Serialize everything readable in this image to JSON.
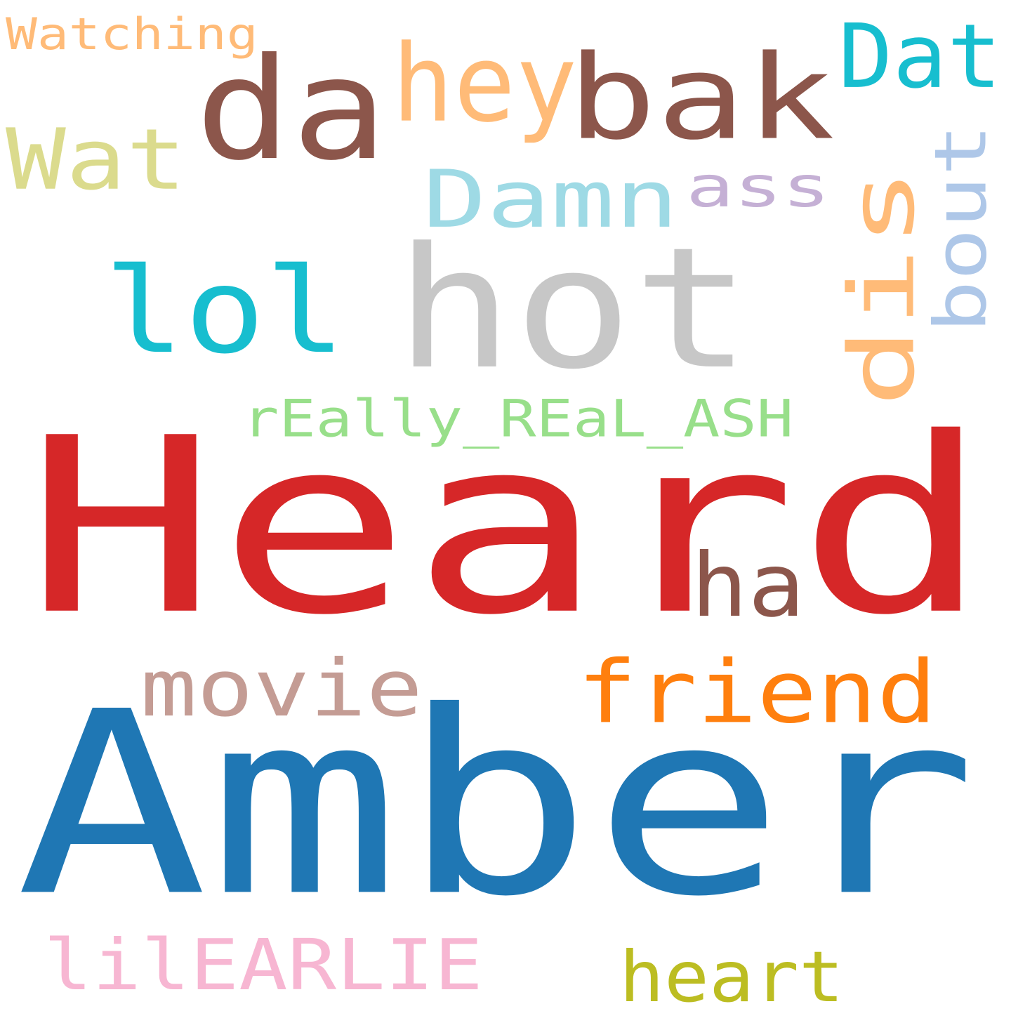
{
  "cloud": {
    "words": [
      {
        "text": "Heard",
        "color": "#d62728"
      },
      {
        "text": "Amber",
        "color": "#1f77b4"
      },
      {
        "text": "hot",
        "color": "#c7c7c7"
      },
      {
        "text": "da",
        "color": "#8c564b"
      },
      {
        "text": "bak",
        "color": "#8c564b"
      },
      {
        "text": "hey",
        "color": "#ffbb78"
      },
      {
        "text": "Dat",
        "color": "#17becf"
      },
      {
        "text": "Wat",
        "color": "#dbdb8d"
      },
      {
        "text": "Damn",
        "color": "#9edae5"
      },
      {
        "text": "ass",
        "color": "#c5b0d5"
      },
      {
        "text": "dis",
        "color": "#ffbb78"
      },
      {
        "text": "bout",
        "color": "#aec7e8"
      },
      {
        "text": "lol",
        "color": "#17becf"
      },
      {
        "text": "rEally_REaL_ASH",
        "color": "#98df8a"
      },
      {
        "text": "ha",
        "color": "#8c564b"
      },
      {
        "text": "movie",
        "color": "#c49c94"
      },
      {
        "text": "friend",
        "color": "#ff7f0e"
      },
      {
        "text": "lilEARLIE",
        "color": "#f7b6d2"
      },
      {
        "text": "heart",
        "color": "#bcbd22"
      },
      {
        "text": "Watching",
        "color": "#ffbb78"
      }
    ]
  }
}
